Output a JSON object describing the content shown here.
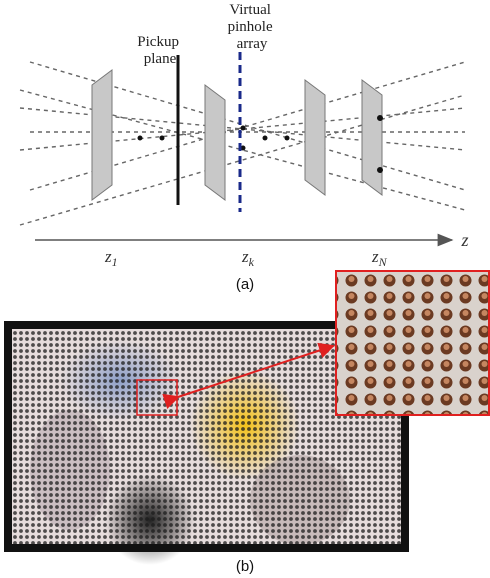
{
  "figure_a": {
    "pickup_plane": [
      "Pickup",
      "plane"
    ],
    "pinhole_array": [
      "Virtual",
      "pinhole",
      "array"
    ],
    "axis_labels": [
      {
        "text": "z",
        "subscript": "1"
      },
      {
        "text": "z",
        "subscript": "k"
      },
      {
        "text": "z",
        "subscript": "N"
      }
    ],
    "axis_name": "z",
    "caption": "(a)"
  },
  "figure_b": {
    "caption": "(b)"
  }
}
